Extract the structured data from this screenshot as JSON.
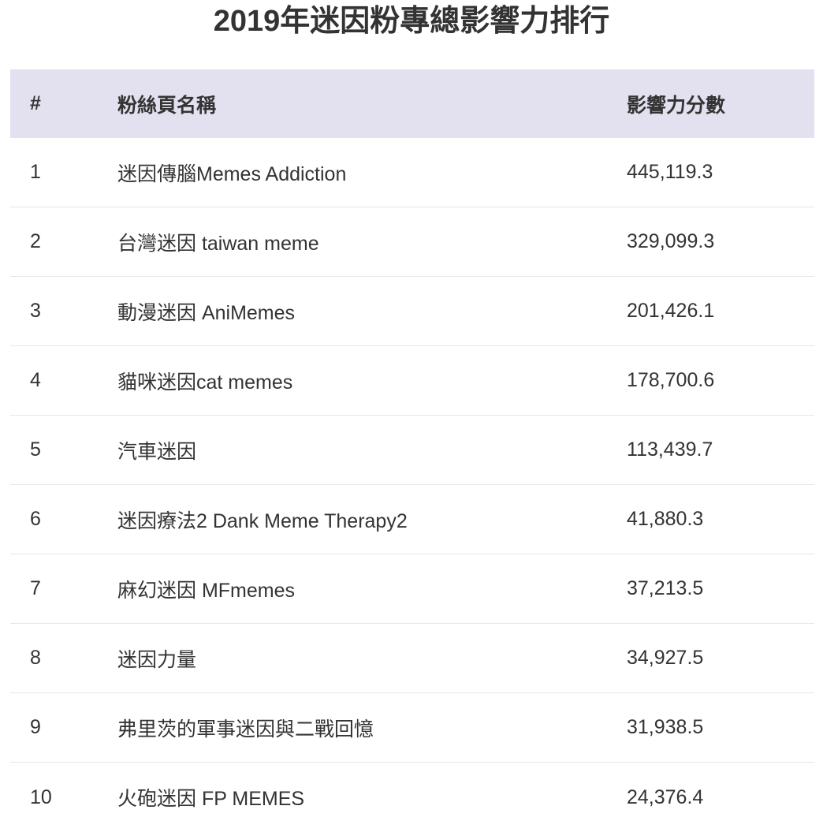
{
  "title": "2019年迷因粉專總影響力排行",
  "table": {
    "headers": {
      "rank": "#",
      "name": "粉絲頁名稱",
      "score": "影響力分數"
    },
    "rows": [
      {
        "rank": "1",
        "name": "迷因傳腦Memes Addiction",
        "score": "445,119.3"
      },
      {
        "rank": "2",
        "name": "台灣迷因 taiwan meme",
        "score": "329,099.3"
      },
      {
        "rank": "3",
        "name": "動漫迷因 AniMemes",
        "score": "201,426.1"
      },
      {
        "rank": "4",
        "name": "貓咪迷因cat memes",
        "score": "178,700.6"
      },
      {
        "rank": "5",
        "name": "汽車迷因",
        "score": "113,439.7"
      },
      {
        "rank": "6",
        "name": "迷因療法2 Dank Meme Therapy2",
        "score": "41,880.3"
      },
      {
        "rank": "7",
        "name": "麻幻迷因 MFmemes",
        "score": "37,213.5"
      },
      {
        "rank": "8",
        "name": "迷因力量",
        "score": "34,927.5"
      },
      {
        "rank": "9",
        "name": "弗里茨的軍事迷因與二戰回憶",
        "score": "31,938.5"
      },
      {
        "rank": "10",
        "name": "火砲迷因 FP MEMES",
        "score": "24,376.4"
      }
    ]
  },
  "colors": {
    "header_background": "#e3e0ef",
    "text": "#333333",
    "row_divider": "#e6e6e6"
  }
}
